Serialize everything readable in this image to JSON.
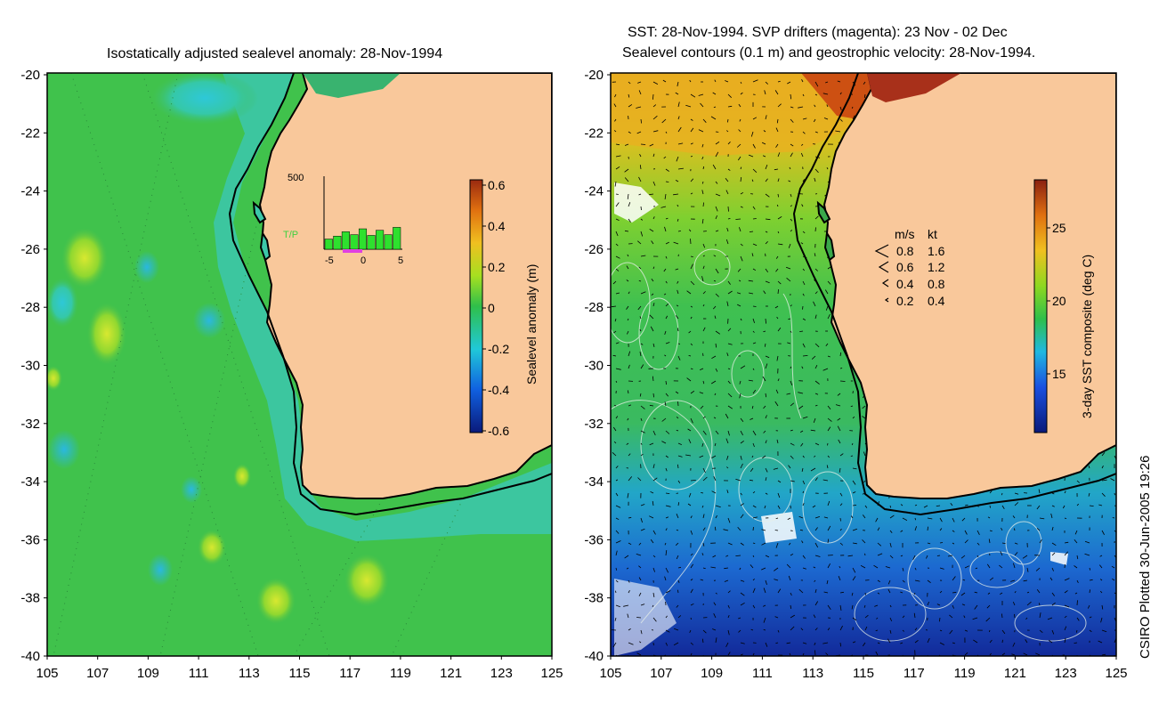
{
  "left_panel": {
    "title": "Isostatically adjusted sealevel anomaly: 28-Nov-1994",
    "y_ticks": [
      "-20",
      "-22",
      "-24",
      "-26",
      "-28",
      "-30",
      "-32",
      "-34",
      "-36",
      "-38",
      "-40"
    ],
    "x_ticks": [
      "105",
      "107",
      "109",
      "111",
      "113",
      "115",
      "117",
      "119",
      "121",
      "123",
      "125"
    ],
    "colorbar": {
      "label": "Sealevel anomaly (m)",
      "ticks": [
        "0.6",
        "0.4",
        "0.2",
        "0",
        "-0.2",
        "-0.4",
        "-0.6"
      ]
    },
    "inset": {
      "label": "T/P",
      "y_tick": "500",
      "x_ticks": [
        "-5",
        "0",
        "5"
      ],
      "bar_values": [
        70,
        90,
        120,
        100,
        140,
        95,
        130,
        100,
        150
      ]
    }
  },
  "right_panel": {
    "title_line1": "SST: 28-Nov-1994. SVP drifters (magenta): 23 Nov - 02 Dec",
    "title_line2": "Sealevel contours (0.1 m) and geostrophic velocity: 28-Nov-1994.",
    "y_ticks": [
      "-20",
      "-22",
      "-24",
      "-26",
      "-28",
      "-30",
      "-32",
      "-34",
      "-36",
      "-38",
      "-40"
    ],
    "x_ticks": [
      "105",
      "107",
      "109",
      "111",
      "113",
      "115",
      "117",
      "119",
      "121",
      "123",
      "125"
    ],
    "colorbar": {
      "label": "3-day SST composite (deg C)",
      "ticks": [
        "25",
        "20",
        "15"
      ]
    },
    "velocity_legend": {
      "header_ms": "m/s",
      "header_kt": "kt",
      "rows": [
        {
          "ms": "0.8",
          "kt": "1.6"
        },
        {
          "ms": "0.6",
          "kt": "1.2"
        },
        {
          "ms": "0.4",
          "kt": "0.8"
        },
        {
          "ms": "0.2",
          "kt": "0.4"
        }
      ]
    }
  },
  "stamp": "CSIRO Plotted 30-Jun-2005 19:26",
  "colors": {
    "land": "#f9c89b",
    "ocean_green": "#3fc24a",
    "sea_cyan": "#3fc7b5",
    "coast": "#000000"
  }
}
